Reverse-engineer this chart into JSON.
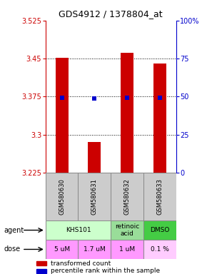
{
  "title": "GDS4912 / 1378804_at",
  "samples": [
    "GSM580630",
    "GSM580631",
    "GSM580632",
    "GSM580633"
  ],
  "bar_values": [
    3.452,
    3.286,
    3.462,
    3.44
  ],
  "bar_base": 3.225,
  "percentile_values": [
    3.373,
    3.371,
    3.373,
    3.373
  ],
  "ylim": [
    3.225,
    3.525
  ],
  "yticks_left": [
    3.225,
    3.3,
    3.375,
    3.45,
    3.525
  ],
  "yticks_right": [
    0,
    25,
    50,
    75,
    100
  ],
  "yticks_right_labels": [
    "0",
    "25",
    "50",
    "75",
    "100%"
  ],
  "bar_color": "#cc0000",
  "percentile_color": "#0000cc",
  "agent_row": [
    {
      "label": "KHS101",
      "span": [
        0,
        2
      ],
      "color": "#ccffcc"
    },
    {
      "label": "retinoic\nacid",
      "span": [
        2,
        3
      ],
      "color": "#99dd99"
    },
    {
      "label": "DMSO",
      "span": [
        3,
        4
      ],
      "color": "#44cc44"
    }
  ],
  "dose_row": [
    {
      "label": "5 uM",
      "span": [
        0,
        1
      ],
      "color": "#ff99ff"
    },
    {
      "label": "1.7 uM",
      "span": [
        1,
        2
      ],
      "color": "#ff99ff"
    },
    {
      "label": "1 uM",
      "span": [
        2,
        3
      ],
      "color": "#ff99ff"
    },
    {
      "label": "0.1 %",
      "span": [
        3,
        4
      ],
      "color": "#ffccff"
    }
  ],
  "left_axis_color": "#cc0000",
  "right_axis_color": "#0000cc",
  "legend_red_label": "transformed count",
  "legend_blue_label": "percentile rank within the sample",
  "sample_col_color": "#cccccc",
  "bar_width": 0.4
}
